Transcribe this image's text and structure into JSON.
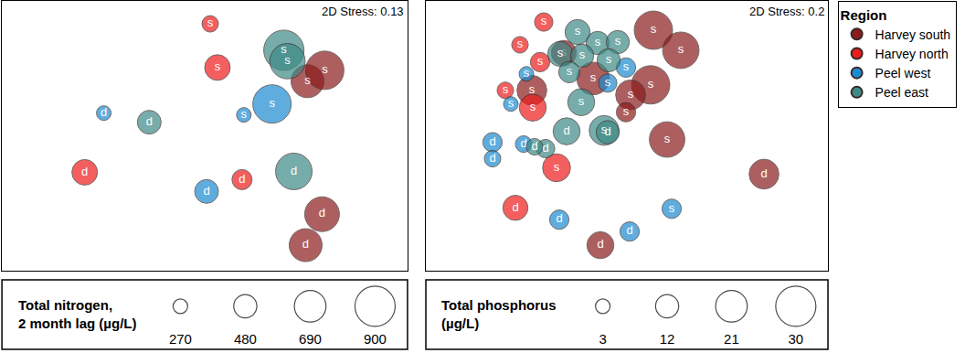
{
  "chart_data": [
    {
      "type": "scatter",
      "annotations": [
        "2D Stress: 0.13"
      ],
      "tick_labels": false,
      "legend": "right",
      "legend_title": "Region",
      "xlim": [
        0,
        446
      ],
      "ylim": [
        0,
        296
      ],
      "size_legend": {
        "title": [
          "Total nitrogen,",
          "2 month lag (µg/L)"
        ],
        "values": [
          270,
          480,
          690,
          900
        ]
      },
      "series": [
        {
          "name": "Harvey south",
          "color": "#8b1c1c",
          "x": [
            336,
            355,
            352,
            334
          ],
          "y": [
            208,
            220,
            62,
            28
          ],
          "labels": [
            "s",
            "s",
            "d",
            "d"
          ],
          "sizes": [
            720,
            855,
            765,
            720
          ]
        },
        {
          "name": "Harvey north",
          "color": "#ee1c1c",
          "x": [
            229,
            237,
            91,
            264
          ],
          "y": [
            271,
            223,
            108,
            100
          ],
          "labels": [
            "s",
            "s",
            "d",
            "d"
          ],
          "sizes": [
            315,
            540,
            540,
            405
          ]
        },
        {
          "name": "Peel west",
          "color": "#1b8bd1",
          "x": [
            297,
            266,
            112,
            225
          ],
          "y": [
            183,
            171,
            173,
            87
          ],
          "labels": [
            "s",
            "s",
            "d",
            "d"
          ],
          "sizes": [
            855,
            270,
            270,
            495
          ]
        },
        {
          "name": "Peel east",
          "color": "#3d8a86",
          "x": [
            310,
            314,
            162,
            321
          ],
          "y": [
            242,
            230,
            163,
            109
          ],
          "labels": [
            "s",
            "s",
            "d",
            "d"
          ],
          "sizes": [
            900,
            780,
            495,
            810
          ]
        }
      ]
    },
    {
      "type": "scatter",
      "annotations": [
        "2D Stress: 0.2"
      ],
      "tick_labels": false,
      "xlim": [
        0,
        440
      ],
      "ylim": [
        0,
        296
      ],
      "size_legend": {
        "title": [
          "Total phosphorus",
          "(µg/L)"
        ],
        "values": [
          3,
          12,
          21,
          30
        ]
      },
      "series": [
        {
          "name": "Harvey south",
          "color": "#8b1c1c",
          "x": [
            249,
            279,
            246,
            224,
            219,
            183,
            151,
            116,
            264,
            370,
            191
          ],
          "y": [
            264,
            242,
            204,
            193,
            174,
            211,
            239,
            198,
            144,
            106,
            28
          ],
          "labels": [
            "s",
            "s",
            "s",
            "s",
            "s",
            "s",
            "s",
            "s",
            "s",
            "d",
            "d"
          ],
          "sizes": [
            28,
            26,
            28,
            19,
            8,
            22,
            14,
            19,
            25,
            19,
            16
          ]
        },
        {
          "name": "Harvey north",
          "color": "#ee1c1c",
          "x": [
            129,
            103,
            125,
            87,
            117,
            143,
            98
          ],
          "y": [
            273,
            248,
            229,
            198,
            179,
            113,
            69
          ],
          "labels": [
            "s",
            "s",
            "s",
            "s",
            "s",
            "s",
            "d"
          ],
          "sizes": [
            7,
            5,
            8,
            5,
            16,
            17,
            14
          ]
        },
        {
          "name": "Peel west",
          "color": "#1b8bd1",
          "x": [
            110,
            93,
            219,
            199,
            73,
            73,
            107,
            146,
            223,
            269
          ],
          "y": [
            216,
            183,
            223,
            206,
            141,
            123,
            139,
            56,
            43,
            68
          ],
          "labels": [
            "s",
            "s",
            "s",
            "s",
            "d",
            "d",
            "d",
            "d",
            "d",
            "s"
          ],
          "sizes": [
            3,
            3,
            8,
            7,
            8,
            5,
            5,
            8,
            8,
            8
          ]
        },
        {
          "name": "Peel east",
          "color": "#3d8a86",
          "x": [
            166,
            188,
            210,
            147,
            171,
            157,
            200,
            170,
            195,
            199,
            154,
            131,
            119
          ],
          "y": [
            262,
            250,
            251,
            238,
            236,
            218,
            231,
            185,
            154,
            152,
            153,
            134,
            136
          ],
          "labels": [
            "s",
            "s",
            "s",
            "s",
            "s",
            "s",
            "s",
            "s",
            "s",
            "d",
            "d",
            "d",
            "d"
          ],
          "sizes": [
            14,
            12,
            12,
            14,
            12,
            10,
            12,
            16,
            19,
            12,
            16,
            7,
            5
          ]
        }
      ]
    }
  ]
}
